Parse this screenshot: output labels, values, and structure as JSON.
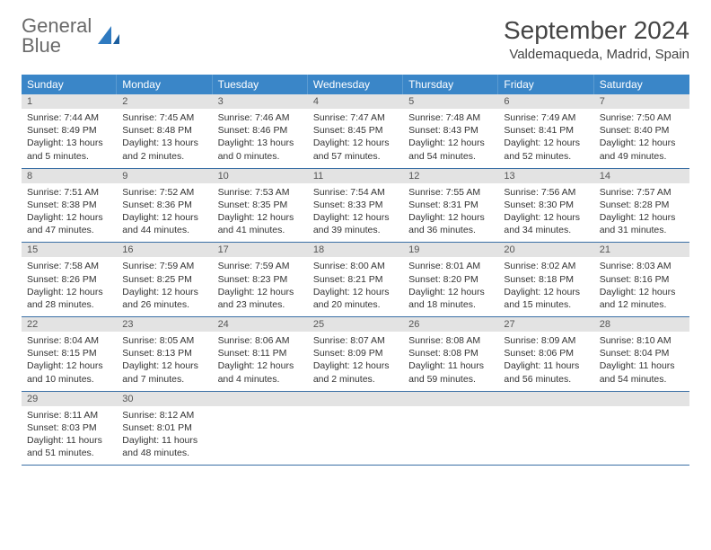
{
  "logo": {
    "word1": "General",
    "word2": "Blue"
  },
  "colors": {
    "header_bg": "#3a86c8",
    "header_text": "#ffffff",
    "daynum_bg": "#e3e3e3",
    "week_divider": "#3a6fa5",
    "logo_gray": "#6a6a6a",
    "logo_blue": "#2f7ac0",
    "text": "#333333"
  },
  "typography": {
    "month_title_size_pt": 21,
    "location_size_pt": 11,
    "weekday_size_pt": 9,
    "cell_size_pt": 8
  },
  "title": "September 2024",
  "location": "Valdemaqueda, Madrid, Spain",
  "weekdays": [
    "Sunday",
    "Monday",
    "Tuesday",
    "Wednesday",
    "Thursday",
    "Friday",
    "Saturday"
  ],
  "labels": {
    "sunrise": "Sunrise: ",
    "sunset": "Sunset: ",
    "daylight": "Daylight: "
  },
  "weeks": [
    [
      {
        "n": "1",
        "sr": "7:44 AM",
        "ss": "8:49 PM",
        "dl": "13 hours and 5 minutes."
      },
      {
        "n": "2",
        "sr": "7:45 AM",
        "ss": "8:48 PM",
        "dl": "13 hours and 2 minutes."
      },
      {
        "n": "3",
        "sr": "7:46 AM",
        "ss": "8:46 PM",
        "dl": "13 hours and 0 minutes."
      },
      {
        "n": "4",
        "sr": "7:47 AM",
        "ss": "8:45 PM",
        "dl": "12 hours and 57 minutes."
      },
      {
        "n": "5",
        "sr": "7:48 AM",
        "ss": "8:43 PM",
        "dl": "12 hours and 54 minutes."
      },
      {
        "n": "6",
        "sr": "7:49 AM",
        "ss": "8:41 PM",
        "dl": "12 hours and 52 minutes."
      },
      {
        "n": "7",
        "sr": "7:50 AM",
        "ss": "8:40 PM",
        "dl": "12 hours and 49 minutes."
      }
    ],
    [
      {
        "n": "8",
        "sr": "7:51 AM",
        "ss": "8:38 PM",
        "dl": "12 hours and 47 minutes."
      },
      {
        "n": "9",
        "sr": "7:52 AM",
        "ss": "8:36 PM",
        "dl": "12 hours and 44 minutes."
      },
      {
        "n": "10",
        "sr": "7:53 AM",
        "ss": "8:35 PM",
        "dl": "12 hours and 41 minutes."
      },
      {
        "n": "11",
        "sr": "7:54 AM",
        "ss": "8:33 PM",
        "dl": "12 hours and 39 minutes."
      },
      {
        "n": "12",
        "sr": "7:55 AM",
        "ss": "8:31 PM",
        "dl": "12 hours and 36 minutes."
      },
      {
        "n": "13",
        "sr": "7:56 AM",
        "ss": "8:30 PM",
        "dl": "12 hours and 34 minutes."
      },
      {
        "n": "14",
        "sr": "7:57 AM",
        "ss": "8:28 PM",
        "dl": "12 hours and 31 minutes."
      }
    ],
    [
      {
        "n": "15",
        "sr": "7:58 AM",
        "ss": "8:26 PM",
        "dl": "12 hours and 28 minutes."
      },
      {
        "n": "16",
        "sr": "7:59 AM",
        "ss": "8:25 PM",
        "dl": "12 hours and 26 minutes."
      },
      {
        "n": "17",
        "sr": "7:59 AM",
        "ss": "8:23 PM",
        "dl": "12 hours and 23 minutes."
      },
      {
        "n": "18",
        "sr": "8:00 AM",
        "ss": "8:21 PM",
        "dl": "12 hours and 20 minutes."
      },
      {
        "n": "19",
        "sr": "8:01 AM",
        "ss": "8:20 PM",
        "dl": "12 hours and 18 minutes."
      },
      {
        "n": "20",
        "sr": "8:02 AM",
        "ss": "8:18 PM",
        "dl": "12 hours and 15 minutes."
      },
      {
        "n": "21",
        "sr": "8:03 AM",
        "ss": "8:16 PM",
        "dl": "12 hours and 12 minutes."
      }
    ],
    [
      {
        "n": "22",
        "sr": "8:04 AM",
        "ss": "8:15 PM",
        "dl": "12 hours and 10 minutes."
      },
      {
        "n": "23",
        "sr": "8:05 AM",
        "ss": "8:13 PM",
        "dl": "12 hours and 7 minutes."
      },
      {
        "n": "24",
        "sr": "8:06 AM",
        "ss": "8:11 PM",
        "dl": "12 hours and 4 minutes."
      },
      {
        "n": "25",
        "sr": "8:07 AM",
        "ss": "8:09 PM",
        "dl": "12 hours and 2 minutes."
      },
      {
        "n": "26",
        "sr": "8:08 AM",
        "ss": "8:08 PM",
        "dl": "11 hours and 59 minutes."
      },
      {
        "n": "27",
        "sr": "8:09 AM",
        "ss": "8:06 PM",
        "dl": "11 hours and 56 minutes."
      },
      {
        "n": "28",
        "sr": "8:10 AM",
        "ss": "8:04 PM",
        "dl": "11 hours and 54 minutes."
      }
    ],
    [
      {
        "n": "29",
        "sr": "8:11 AM",
        "ss": "8:03 PM",
        "dl": "11 hours and 51 minutes."
      },
      {
        "n": "30",
        "sr": "8:12 AM",
        "ss": "8:01 PM",
        "dl": "11 hours and 48 minutes."
      },
      null,
      null,
      null,
      null,
      null
    ]
  ]
}
